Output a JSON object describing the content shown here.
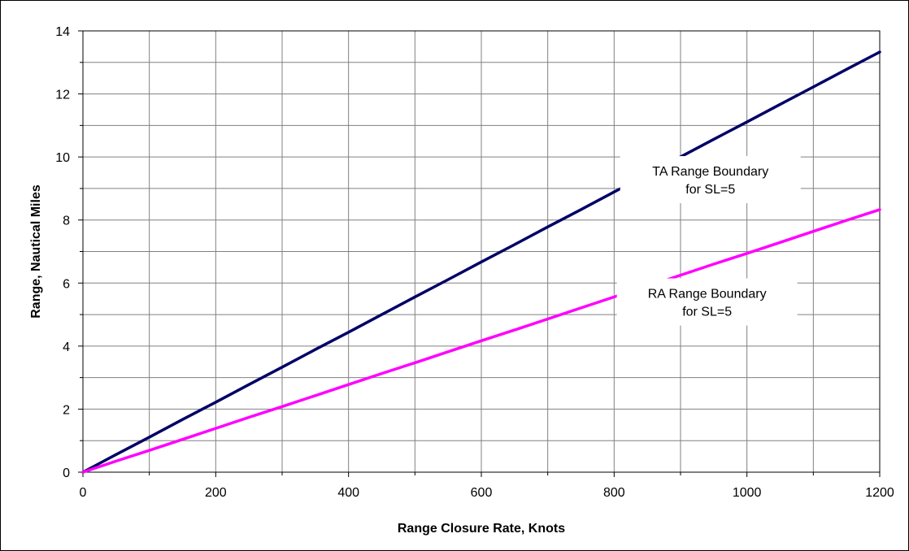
{
  "chart_data": {
    "type": "line",
    "title": "",
    "xlabel": "Range Closure Rate, Knots",
    "ylabel": "Range, Nautical Miles",
    "xlim": [
      0,
      1200
    ],
    "ylim": [
      0,
      14
    ],
    "xticks": [
      0,
      200,
      400,
      600,
      800,
      1000,
      1200
    ],
    "yticks": [
      0,
      2,
      4,
      6,
      8,
      10,
      12,
      14
    ],
    "x_minor_step": 100,
    "y_minor_step": 1,
    "grid": true,
    "legend": "none",
    "series": [
      {
        "color": "#000066",
        "x": [
          0,
          50,
          100,
          150,
          200,
          250,
          300,
          350,
          400,
          450,
          500,
          550,
          600,
          650,
          700,
          750,
          800,
          850,
          900,
          950,
          1000,
          1050,
          1100,
          1150,
          1200
        ],
        "y": [
          0,
          0.56,
          1.11,
          1.67,
          2.22,
          2.78,
          3.33,
          3.89,
          4.44,
          5.0,
          5.56,
          6.11,
          6.67,
          7.22,
          7.78,
          8.33,
          8.89,
          9.44,
          10.0,
          10.56,
          11.11,
          11.67,
          12.22,
          12.78,
          13.33
        ]
      },
      {
        "color": "#ff00ff",
        "x": [
          0,
          50,
          100,
          150,
          200,
          250,
          300,
          350,
          400,
          450,
          500,
          550,
          600,
          650,
          700,
          750,
          800,
          850,
          900,
          950,
          1000,
          1050,
          1100,
          1150,
          1200
        ],
        "y": [
          0,
          0.35,
          0.69,
          1.04,
          1.39,
          1.74,
          2.08,
          2.43,
          2.78,
          3.13,
          3.47,
          3.82,
          4.17,
          4.51,
          4.86,
          5.21,
          5.56,
          5.9,
          6.25,
          6.6,
          6.94,
          7.29,
          7.64,
          7.99,
          8.33
        ]
      }
    ],
    "annotations": [
      {
        "lines": [
          "TA Range Boundary",
          "for SL=5"
        ],
        "anchor_x": 945,
        "anchor_y": 9.28
      },
      {
        "lines": [
          "RA Range Boundary",
          "for SL=5"
        ],
        "anchor_x": 940,
        "anchor_y": 5.4
      }
    ]
  }
}
